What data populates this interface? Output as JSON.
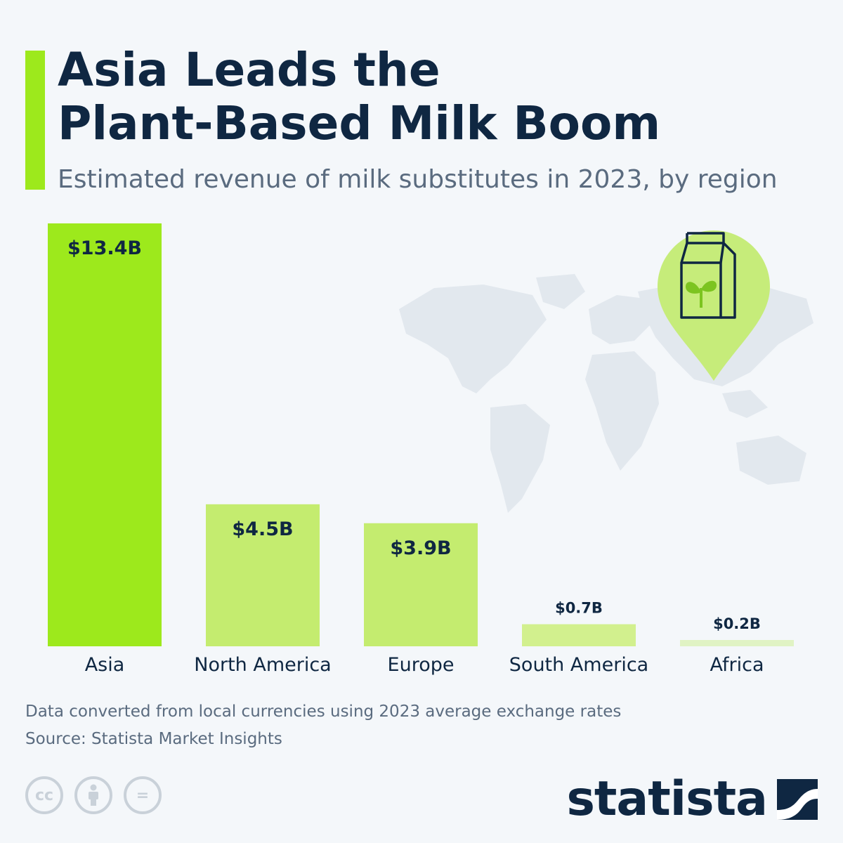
{
  "header": {
    "title_line1": "Asia Leads the",
    "title_line2": "Plant-Based Milk Boom",
    "subtitle": "Estimated revenue of milk substitutes in 2023, by region"
  },
  "colors": {
    "accent": "#9de91c",
    "text_dark": "#0f2742",
    "text_muted": "#5a6b7f",
    "map": "#e2e8ee",
    "pin": "#c6ec7a",
    "background": "#f4f7fa"
  },
  "chart_data": {
    "type": "bar",
    "title": "Asia Leads the Plant-Based Milk Boom",
    "subtitle": "Estimated revenue of milk substitutes in 2023, by region",
    "categories": [
      "Asia",
      "North America",
      "Europe",
      "South America",
      "Africa"
    ],
    "values": [
      13.4,
      4.5,
      3.9,
      0.7,
      0.2
    ],
    "value_labels": [
      "$13.4B",
      "$4.5B",
      "$3.9B",
      "$0.7B",
      "$0.2B"
    ],
    "bar_colors": [
      "#9de91c",
      "#c4ec6f",
      "#c4ec6f",
      "#d2f08e",
      "#e0f3c4"
    ],
    "ylim": [
      0,
      13.4
    ],
    "grid": false,
    "legend": "none"
  },
  "footer": {
    "note": "Data converted from local currencies using 2023 average exchange rates",
    "source": "Source: Statista Market Insights",
    "license_icons": [
      "cc-icon",
      "attribution-icon",
      "no-derivatives-icon"
    ],
    "license_glyphs": [
      "cc",
      "="
    ],
    "logo_text": "statista"
  },
  "icons": {
    "pin": "milk-carton-pin-icon",
    "sprout": "sprout-icon",
    "map": "world-map-icon",
    "logo_mark": "statista-logo-icon"
  }
}
